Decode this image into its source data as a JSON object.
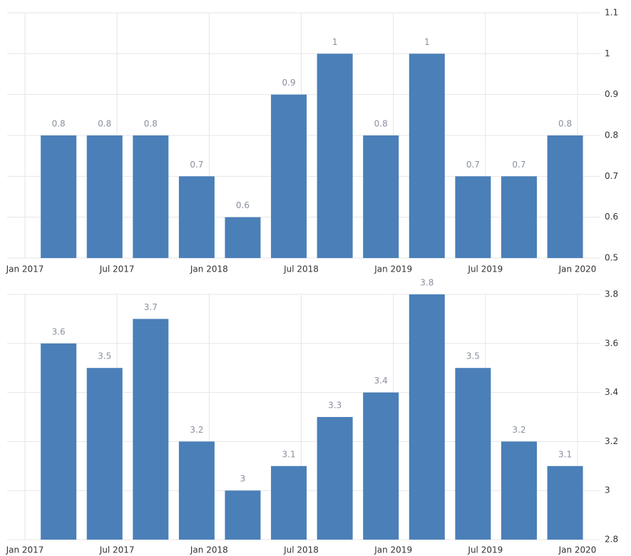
{
  "chart_data": [
    {
      "type": "bar",
      "color": "#4a7fb8",
      "xticks": [
        "Jan 2017",
        "Jul 2017",
        "Jan 2018",
        "Jul 2018",
        "Jan 2019",
        "Jul 2019",
        "Jan 2020"
      ],
      "values": [
        0.8,
        0.8,
        0.8,
        0.7,
        0.6,
        0.9,
        1,
        0.8,
        1,
        0.7,
        0.7,
        0.8
      ],
      "ylim": [
        0.5,
        1.1
      ],
      "yticks": [
        0.5,
        0.6,
        0.7,
        0.8,
        0.9,
        1,
        1.1
      ],
      "grid": true
    },
    {
      "type": "bar",
      "color": "#4a7fb8",
      "xticks": [
        "Jan 2017",
        "Jul 2017",
        "Jan 2018",
        "Jul 2018",
        "Jan 2019",
        "Jul 2019",
        "Jan 2020"
      ],
      "values": [
        3.6,
        3.5,
        3.7,
        3.2,
        3,
        3.1,
        3.3,
        3.4,
        3.8,
        3.5,
        3.2,
        3.1
      ],
      "ylim": [
        2.8,
        3.8
      ],
      "yticks": [
        2.8,
        3,
        3.2,
        3.4,
        3.6,
        3.8
      ],
      "grid": true
    }
  ]
}
